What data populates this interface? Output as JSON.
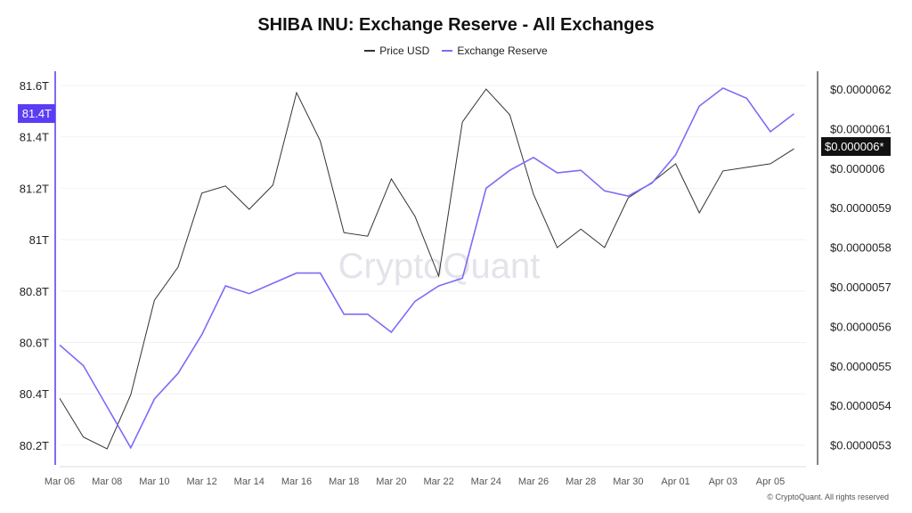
{
  "chart_data": {
    "type": "line",
    "title": "SHIBA INU: Exchange Reserve - All Exchanges",
    "x": [
      "Mar 06",
      "Mar 07",
      "Mar 08",
      "Mar 09",
      "Mar 10",
      "Mar 11",
      "Mar 12",
      "Mar 13",
      "Mar 14",
      "Mar 15",
      "Mar 16",
      "Mar 17",
      "Mar 18",
      "Mar 19",
      "Mar 20",
      "Mar 21",
      "Mar 22",
      "Mar 23",
      "Mar 24",
      "Mar 25",
      "Mar 26",
      "Mar 27",
      "Mar 28",
      "Mar 29",
      "Mar 30",
      "Mar 31",
      "Apr 01",
      "Apr 02",
      "Apr 03",
      "Apr 04",
      "Apr 05",
      "Apr 06"
    ],
    "x_tick_labels": [
      "Mar 06",
      "Mar 08",
      "Mar 10",
      "Mar 12",
      "Mar 14",
      "Mar 16",
      "Mar 18",
      "Mar 20",
      "Mar 22",
      "Mar 24",
      "Mar 26",
      "Mar 28",
      "Mar 30",
      "Apr 01",
      "Apr 03",
      "Apr 05"
    ],
    "left_axis": {
      "unit": "T",
      "ylim": [
        80.1,
        81.7
      ],
      "ticks": [
        "81.6T",
        "81.4T",
        "81.2T",
        "81T",
        "80.8T",
        "80.6T",
        "80.4T",
        "80.2T"
      ],
      "tick_values": [
        81.6,
        81.4,
        81.2,
        81.0,
        80.8,
        80.6,
        80.4,
        80.2
      ],
      "current_badge": "81.4T"
    },
    "right_axis": {
      "ylim_e7": [
        52.4,
        62.6
      ],
      "ticks": [
        "$0.0000062",
        "$0.0000061",
        "$0.000006",
        "$0.0000059",
        "$0.0000058",
        "$0.0000057",
        "$0.0000056",
        "$0.0000055",
        "$0.0000054",
        "$0.0000053"
      ],
      "tick_values_e7": [
        62,
        61,
        60,
        59,
        58,
        57,
        56,
        55,
        54,
        53
      ],
      "current_badge": "$0.000006*"
    },
    "series": [
      {
        "name": "Price USD",
        "axis": "right",
        "unit": "1e-7 USD",
        "color": "#333333",
        "values": [
          54.18,
          53.2,
          52.9,
          54.27,
          56.66,
          57.5,
          59.37,
          59.55,
          58.96,
          59.57,
          61.91,
          60.69,
          58.37,
          58.28,
          59.73,
          58.78,
          57.27,
          61.17,
          62.0,
          61.35,
          59.34,
          57.99,
          58.46,
          57.99,
          59.25,
          59.64,
          60.11,
          58.87,
          59.93,
          60.02,
          60.11,
          60.49
        ]
      },
      {
        "name": "Exchange Reserve",
        "axis": "left",
        "unit": "T",
        "color": "#7b6cf6",
        "values": [
          80.59,
          80.51,
          80.35,
          80.19,
          80.38,
          80.48,
          80.63,
          80.82,
          80.79,
          80.83,
          80.87,
          80.87,
          80.71,
          80.71,
          80.64,
          80.76,
          80.82,
          80.85,
          81.2,
          81.27,
          81.32,
          81.26,
          81.27,
          81.19,
          81.17,
          81.22,
          81.33,
          81.52,
          81.59,
          81.55,
          81.42,
          81.49
        ]
      }
    ],
    "grid": true,
    "legend_position": "top-center"
  },
  "watermark": "CryptoQuant",
  "copyright": "© CryptoQuant. All rights reserved",
  "colors": {
    "accent": "#5b3df5",
    "reserve": "#7b6cf6",
    "price": "#333333"
  }
}
